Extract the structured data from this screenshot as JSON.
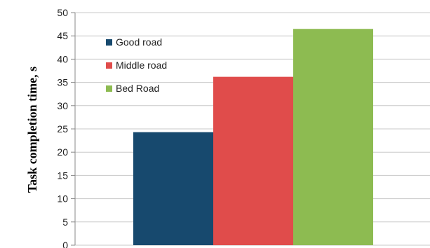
{
  "chart_data": {
    "type": "bar",
    "title": "",
    "xlabel": "",
    "ylabel": "Task completion time, s",
    "ylim": [
      0,
      50
    ],
    "yticks": [
      0,
      5,
      10,
      15,
      20,
      25,
      30,
      35,
      40,
      45,
      50
    ],
    "grid": true,
    "legend_position": "top-left",
    "series": [
      {
        "name": "Good road",
        "value": 24.3,
        "color": "#17496e"
      },
      {
        "name": "Middle road",
        "value": 36.2,
        "color": "#e04c4b"
      },
      {
        "name": "Bed Road",
        "value": 46.5,
        "color": "#8dbb51"
      }
    ]
  }
}
